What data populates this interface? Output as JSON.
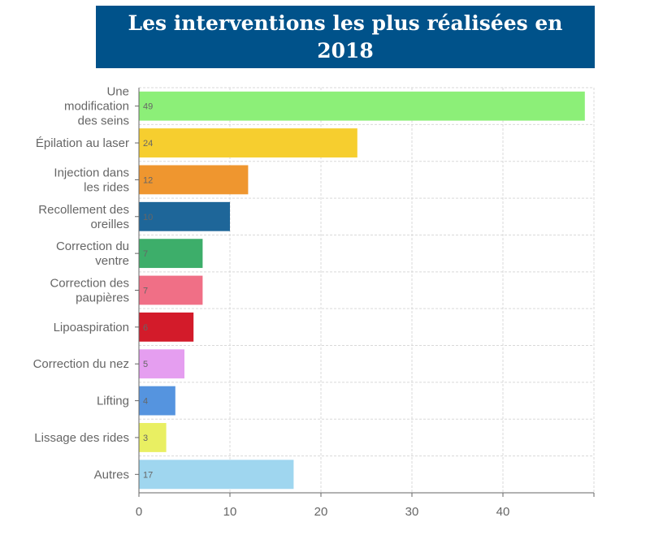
{
  "chart_data": {
    "type": "bar",
    "orientation": "horizontal",
    "title": "Les interventions les plus réalisées en 2018",
    "categories": [
      [
        "Une",
        "modification",
        "des seins"
      ],
      [
        "Épilation au laser"
      ],
      [
        "Injection dans",
        "les rides"
      ],
      [
        "Recollement des",
        "oreilles"
      ],
      [
        "Correction du",
        "ventre"
      ],
      [
        "Correction des",
        "paupières"
      ],
      [
        "Lipoaspiration"
      ],
      [
        "Correction du nez"
      ],
      [
        "Lifting"
      ],
      [
        "Lissage des rides"
      ],
      [
        "Autres"
      ]
    ],
    "values": [
      49,
      24,
      12,
      10,
      7,
      7,
      6,
      5,
      4,
      3,
      17
    ],
    "colors": [
      "#8cef78",
      "#f6ce2f",
      "#ef962f",
      "#1e6699",
      "#3dae6a",
      "#f06f86",
      "#d31b2a",
      "#e59ef0",
      "#5594df",
      "#e9ef62",
      "#9fd6ef"
    ],
    "xlim": [
      0,
      50
    ],
    "xticks": [
      0,
      10,
      20,
      30,
      40
    ],
    "grid": true,
    "legend": "none"
  }
}
